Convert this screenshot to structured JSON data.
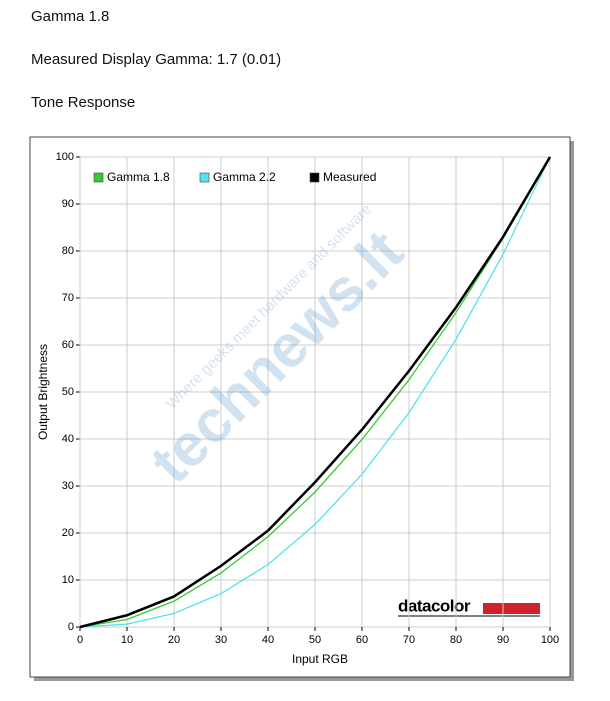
{
  "header": {
    "title": "Gamma 1.8",
    "measured": "Measured Display Gamma: 1.7 (0.01)",
    "section": "Tone Response"
  },
  "chart_data": {
    "type": "line",
    "xlabel": "Input RGB",
    "ylabel": "Output Brightness",
    "x": [
      0,
      10,
      20,
      30,
      40,
      50,
      60,
      70,
      80,
      90,
      100
    ],
    "series": [
      {
        "name": "Gamma 1.8",
        "color": "#33cc33",
        "values": [
          0,
          1.6,
          5.5,
          11.5,
          19.2,
          28.7,
          39.9,
          52.6,
          66.9,
          82.7,
          100
        ]
      },
      {
        "name": "Gamma 2.2",
        "color": "#55e3e8",
        "values": [
          0,
          0.6,
          2.9,
          7.1,
          13.3,
          21.8,
          32.5,
          45.6,
          61.2,
          79.3,
          100
        ]
      },
      {
        "name": "Measured",
        "color": "#000000",
        "values": [
          0,
          2.5,
          6.5,
          13,
          20.5,
          30.8,
          42,
          54.5,
          68,
          83,
          100
        ]
      }
    ],
    "xlim": [
      0,
      100
    ],
    "ylim": [
      0,
      100
    ],
    "xticks": [
      0,
      10,
      20,
      30,
      40,
      50,
      60,
      70,
      80,
      90,
      100
    ],
    "yticks": [
      0,
      10,
      20,
      30,
      40,
      50,
      60,
      70,
      80,
      90,
      100
    ],
    "grid": true,
    "legend": "top-left",
    "logo": "datacolor",
    "watermark": {
      "brand": "technews.lt",
      "tagline": "Where geeks meet hardware and software"
    }
  }
}
